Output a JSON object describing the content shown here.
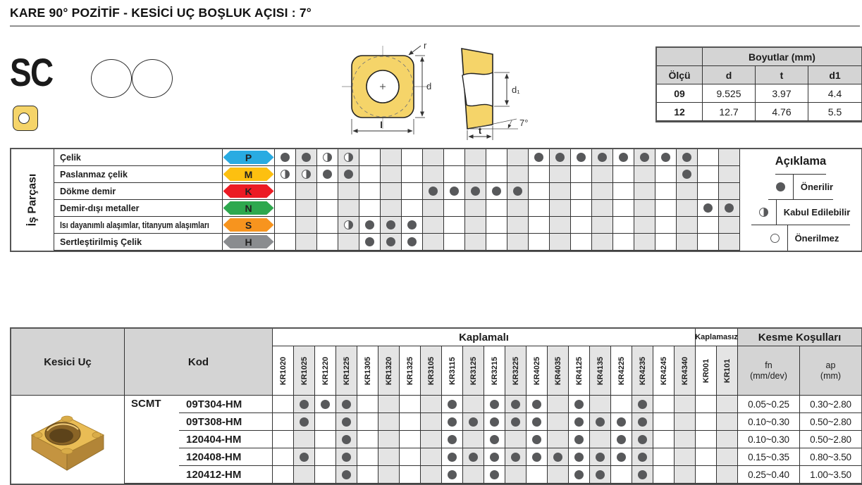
{
  "title": "KARE 90° POZİTİF - KESİCİ UÇ BOŞLUK AÇISI : 7°",
  "series": {
    "code": "SC"
  },
  "drawing": {
    "labels": {
      "r": "r",
      "d": "d",
      "l": "l",
      "d1": "d₁",
      "t": "t",
      "angle": "7°"
    }
  },
  "dimensions_table": {
    "title": "Boyutlar (mm)",
    "headers": [
      "Ölçü",
      "d",
      "t",
      "d1"
    ],
    "rows": [
      [
        "09",
        "9.525",
        "3.97",
        "4.4"
      ],
      [
        "12",
        "12.7",
        "4.76",
        "5.5"
      ]
    ]
  },
  "grades": {
    "coated_label": "Kaplamalı",
    "uncoated_label": "Kaplamasız",
    "coated": [
      "KR1020",
      "KR1025",
      "KR1220",
      "KR1225",
      "KR1305",
      "KR1320",
      "KR1325",
      "KR3105",
      "KR3115",
      "KR3125",
      "KR3215",
      "KR3225",
      "KR4025",
      "KR4035",
      "KR4125",
      "KR4135",
      "KR4225",
      "KR4235",
      "KR4245",
      "KR4340"
    ],
    "uncoated": [
      "KR001",
      "KR101"
    ]
  },
  "material_matrix": {
    "group_label": "İş Parçası",
    "rows": [
      {
        "label": "Çelik",
        "letter": "P",
        "color": "#29ABE2",
        "full": [
          "KR1020",
          "KR1025",
          "KR4025",
          "KR4035",
          "KR4125",
          "KR4135",
          "KR4225",
          "KR4235",
          "KR4245",
          "KR4340"
        ],
        "half": [
          "KR1220",
          "KR1225"
        ]
      },
      {
        "label": "Paslanmaz çelik",
        "letter": "M",
        "color": "#FDC010",
        "full": [
          "KR1220",
          "KR1225",
          "KR4340"
        ],
        "half": [
          "KR1020",
          "KR1025"
        ]
      },
      {
        "label": "Dökme demir",
        "letter": "K",
        "color": "#EC1B24",
        "full": [
          "KR3105",
          "KR3115",
          "KR3125",
          "KR3215",
          "KR3225"
        ],
        "half": []
      },
      {
        "label": "Demir-dışı metaller",
        "letter": "N",
        "color": "#2EA84E",
        "full": [
          "KR001",
          "KR101"
        ],
        "half": []
      },
      {
        "label": "Isı dayanımlı alaşımlar, titanyum alaşımları",
        "letter": "S",
        "color": "#F7941E",
        "full": [
          "KR1305",
          "KR1320",
          "KR1325"
        ],
        "half": [
          "KR1225"
        ]
      },
      {
        "label": "Sertleştirilmiş Çelik",
        "letter": "H",
        "color": "#8A8C8F",
        "full": [
          "KR1305",
          "KR1320",
          "KR1325"
        ],
        "half": []
      }
    ]
  },
  "legend": {
    "title": "Açıklama",
    "items": [
      {
        "symbol": "full",
        "label": "Önerilir"
      },
      {
        "symbol": "half",
        "label": "Kabul Edilebilir"
      },
      {
        "symbol": "empty",
        "label": "Önerilmez"
      }
    ]
  },
  "products": {
    "col_insert": "Kesici Uç",
    "col_code": "Kod",
    "col_cutting": "Kesme Koşulları",
    "fn_header": "fn",
    "fn_unit": "(mm/dev)",
    "ap_header": "ap",
    "ap_unit": "(mm)",
    "series_code": "SCMT",
    "rows": [
      {
        "code": "09T304-HM",
        "fn": "0.05~0.25",
        "ap": "0.30~2.80",
        "grades": [
          "KR1025",
          "KR1220",
          "KR1225",
          "KR3115",
          "KR3215",
          "KR3225",
          "KR4025",
          "KR4125",
          "KR4235"
        ]
      },
      {
        "code": "09T308-HM",
        "fn": "0.10~0.30",
        "ap": "0.50~2.80",
        "grades": [
          "KR1025",
          "KR1225",
          "KR3115",
          "KR3125",
          "KR3215",
          "KR3225",
          "KR4025",
          "KR4125",
          "KR4135",
          "KR4225",
          "KR4235"
        ]
      },
      {
        "code": "120404-HM",
        "fn": "0.10~0.30",
        "ap": "0.50~2.80",
        "grades": [
          "KR1225",
          "KR3115",
          "KR3215",
          "KR4025",
          "KR4125",
          "KR4225",
          "KR4235"
        ]
      },
      {
        "code": "120408-HM",
        "fn": "0.15~0.35",
        "ap": "0.80~3.50",
        "grades": [
          "KR1025",
          "KR1225",
          "KR3115",
          "KR3125",
          "KR3215",
          "KR3225",
          "KR4025",
          "KR4035",
          "KR4125",
          "KR4135",
          "KR4225",
          "KR4235"
        ]
      },
      {
        "code": "120412-HM",
        "fn": "0.25~0.40",
        "ap": "1.00~3.50",
        "grades": [
          "KR1225",
          "KR3115",
          "KR3215",
          "KR4125",
          "KR4135",
          "KR4235"
        ]
      }
    ]
  },
  "colors": {
    "header_bg": "#D4D4D4",
    "column_shade": "#E4E4E4",
    "dot": "#58595B",
    "insert_yellow": "#F5D469"
  }
}
